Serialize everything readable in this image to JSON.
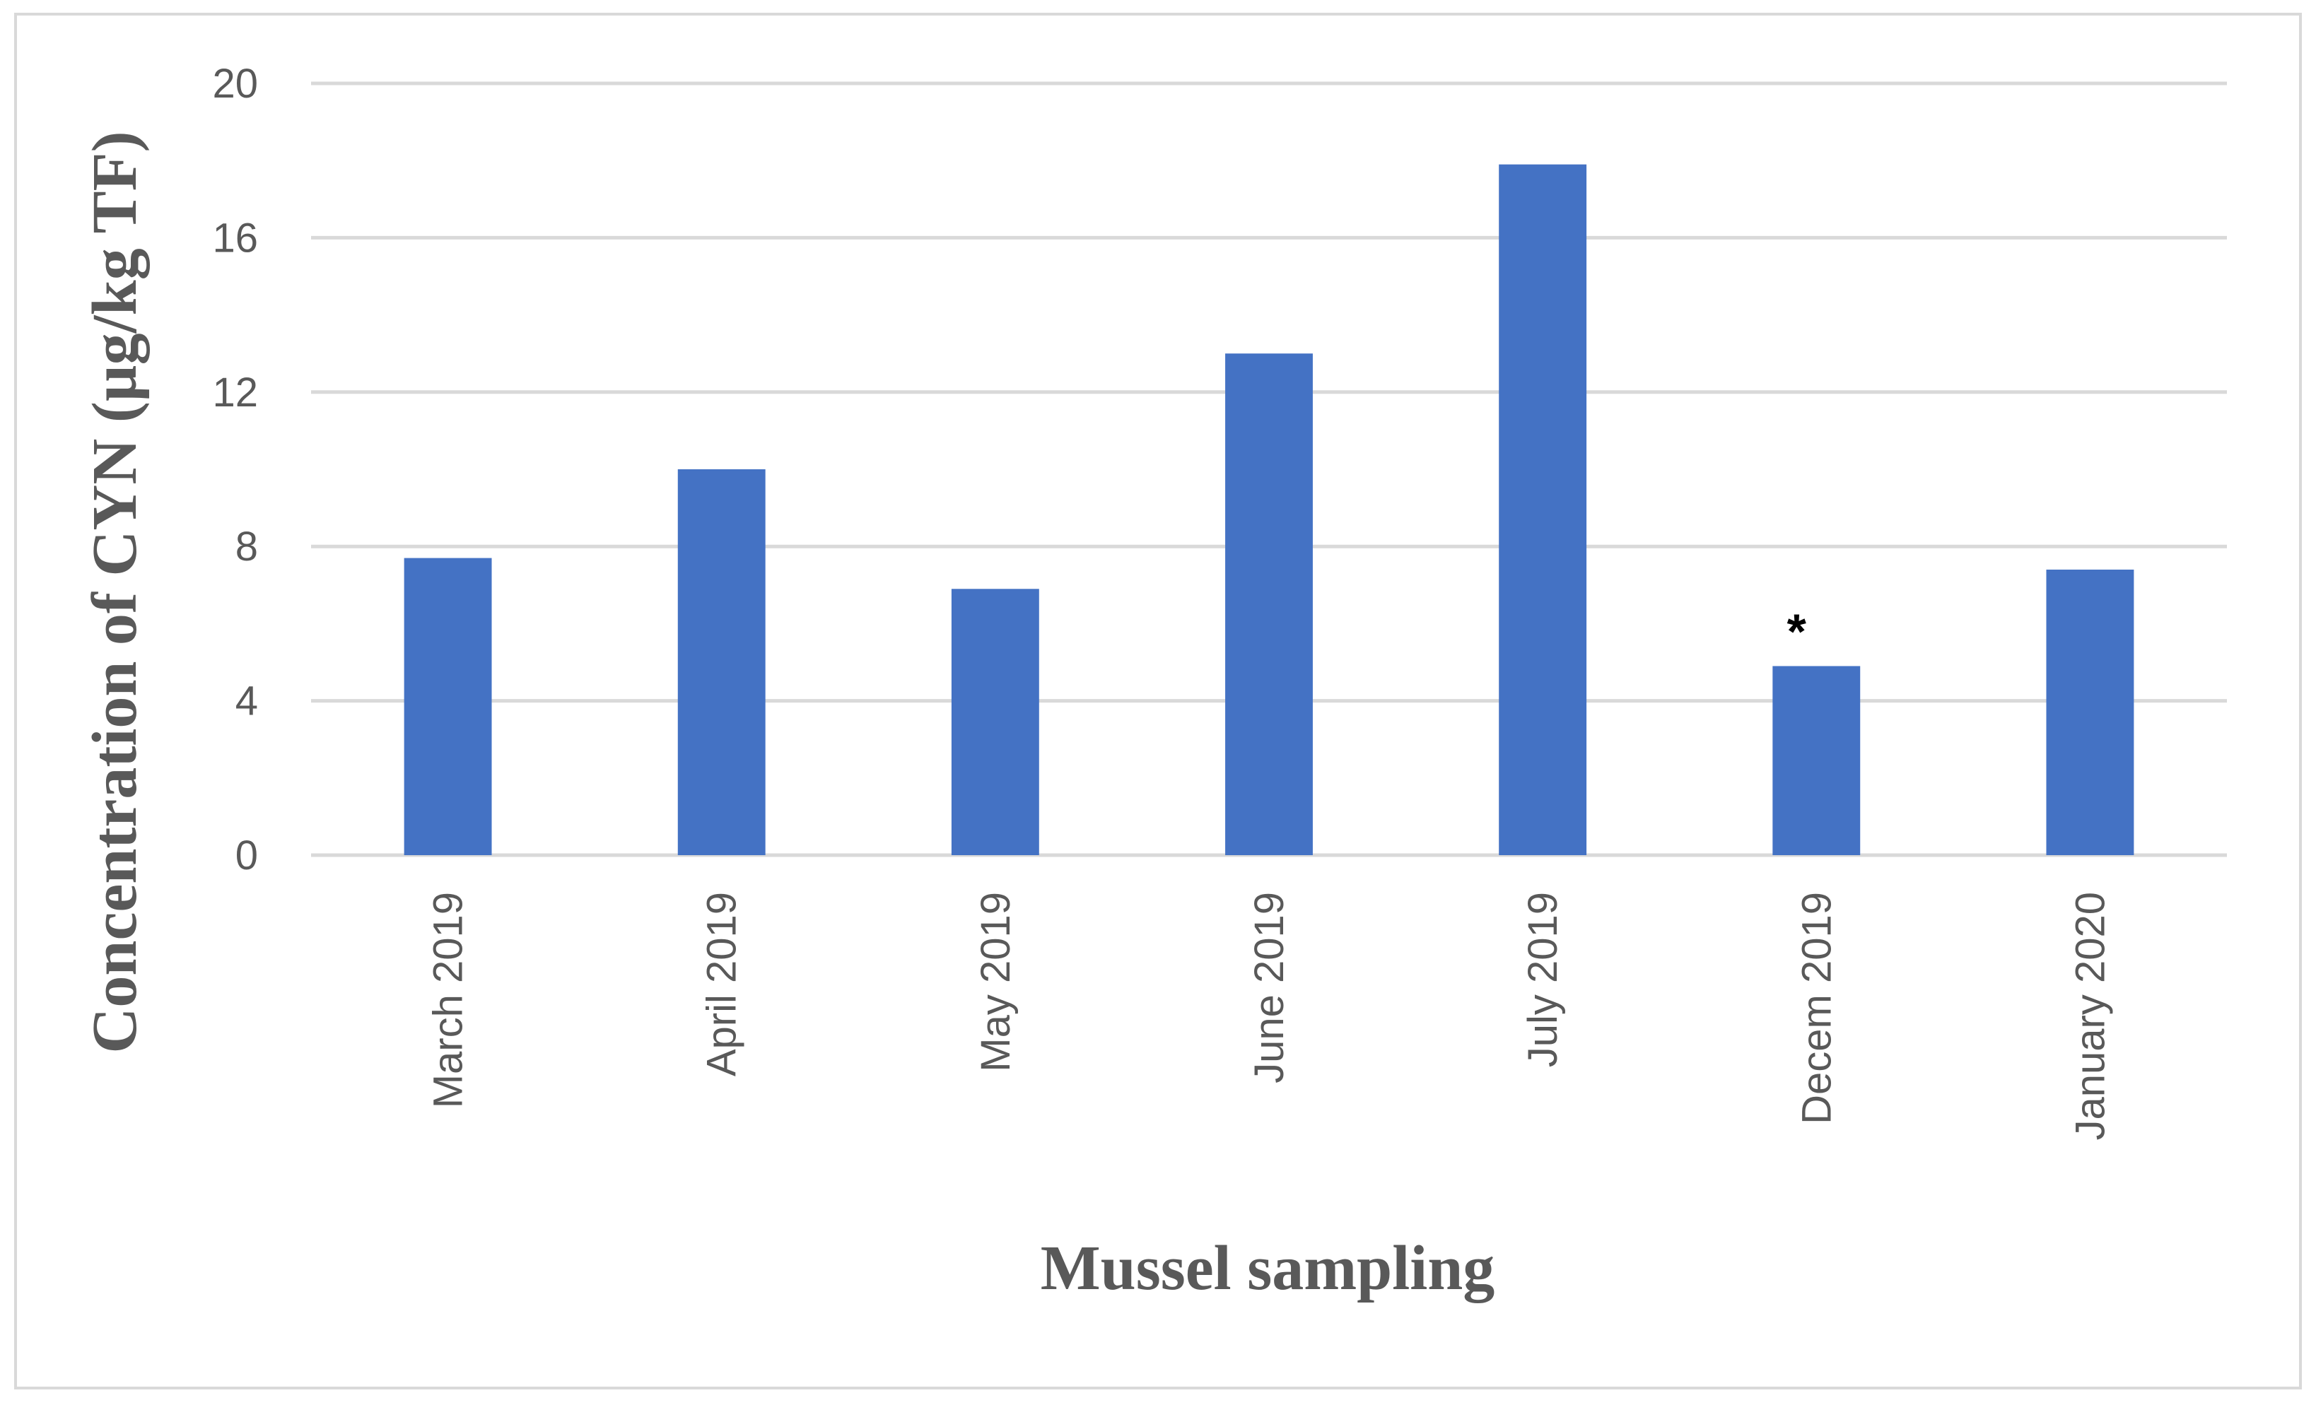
{
  "chart_data": {
    "type": "bar",
    "categories": [
      "March 2019",
      "April 2019",
      "May 2019",
      "June 2019",
      "July 2019",
      "Decem 2019",
      "January 2020"
    ],
    "values": [
      7.7,
      10.0,
      6.9,
      13.0,
      17.9,
      4.9,
      7.4
    ],
    "xlabel": "Mussel sampling",
    "ylabel": "Concentration of CYN (µg/kg TF)",
    "ylim": [
      0,
      20
    ],
    "yticks": [
      0,
      4,
      8,
      12,
      16,
      20
    ],
    "ytick_labels": [
      "0",
      "4",
      "8",
      "12",
      "16",
      "20"
    ],
    "grid": true,
    "legend": "none",
    "bar_color": "#4472c4",
    "annotations": [
      {
        "category": "Decem 2019",
        "text": "*"
      }
    ]
  }
}
